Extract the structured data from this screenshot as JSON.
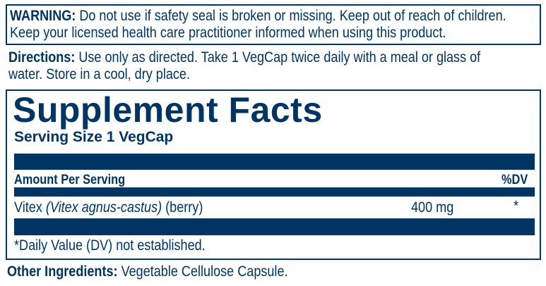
{
  "warning": {
    "label": "WARNING:",
    "line1": " Do not use if safety seal is broken or missing. Keep out of reach of children.",
    "line2": "Keep your licensed health care practitioner informed when using this product."
  },
  "directions": {
    "label": "Directions:",
    "line1": " Use only as directed. Take 1 VegCap twice daily with a meal or glass of",
    "line2": "water. Store in a cool, dry place."
  },
  "facts": {
    "title": "Supplement Facts",
    "serving_size": "Serving Size 1 VegCap",
    "amount_header": "Amount Per Serving",
    "dv_header": "%DV",
    "rows": [
      {
        "name": "Vitex ",
        "latin": "(Vitex agnus-castus)",
        "part": " (berry)",
        "amount": "400 mg",
        "dv": "*"
      }
    ],
    "footnote": "*Daily Value (DV) not established."
  },
  "other_ingredients": {
    "label": "Other Ingredients:",
    "text": " Vegetable Cellulose Capsule."
  },
  "colors": {
    "ink": "#003462",
    "background": "#ffffff"
  }
}
